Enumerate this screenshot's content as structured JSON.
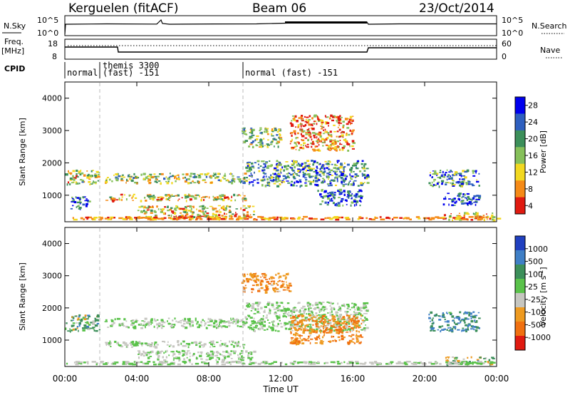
{
  "header": {
    "station": "Kerguelen (fitACF)",
    "beam": "Beam 06",
    "date": "23/Oct/2014"
  },
  "panels": {
    "noise": {
      "left_label": "N.Sky",
      "right_label": "N.Search",
      "left_ticks": [
        "10^5",
        "10^0"
      ],
      "right_ticks": [
        "10^5",
        "10^0"
      ]
    },
    "freq": {
      "left_label_1": "Freq.",
      "left_label_2": "[MHz]",
      "right_label": "Nave",
      "left_ticks": [
        "18",
        "8"
      ],
      "right_ticks": [
        "60",
        "0"
      ]
    },
    "cpid": {
      "label": "CPID",
      "segments": [
        {
          "text": "normal"
        },
        {
          "text": "themis 3300",
          "text2": "(fast) -151"
        },
        {
          "text": "normal (fast) -151"
        }
      ]
    }
  },
  "chart_data": [
    {
      "type": "heatmap",
      "title": "",
      "ylabel": "Slant Range [km]",
      "xlabel": "",
      "colorbar_label": "Power [dB]",
      "colorbar_ticks": [
        "28",
        "24",
        "20",
        "16",
        "12",
        "8",
        "4"
      ],
      "colorbar_values": [
        28,
        24,
        20,
        16,
        12,
        8,
        4
      ],
      "colorscale": [
        "#0000ee",
        "#2e5fbf",
        "#3c8f5a",
        "#86c05a",
        "#f2d820",
        "#f58a17",
        "#e01a10"
      ],
      "y_ticks": [
        "4000",
        "3000",
        "2000",
        "1000"
      ],
      "y_values": [
        4000,
        3000,
        2000,
        1000
      ],
      "ylim": [
        180,
        4500
      ],
      "xlim": [
        0,
        24
      ],
      "x_ticks": [
        "00:00",
        "04:00",
        "08:00",
        "12:00",
        "16:00",
        "20:00",
        "00:00"
      ],
      "x_values": [
        0,
        4,
        8,
        12,
        16,
        20,
        24
      ],
      "bands": [
        {
          "t0": 0.0,
          "t1": 1.9,
          "r0": 1350,
          "r1": 1800,
          "power": 14
        },
        {
          "t0": 0.3,
          "t1": 1.3,
          "r0": 600,
          "r1": 1000,
          "power": 24
        },
        {
          "t0": 2.2,
          "t1": 10.0,
          "r0": 1400,
          "r1": 1700,
          "power": 16
        },
        {
          "t0": 2.2,
          "t1": 10.0,
          "r0": 850,
          "r1": 1050,
          "power": 12
        },
        {
          "t0": 4.0,
          "t1": 10.5,
          "r0": 350,
          "r1": 700,
          "power": 12
        },
        {
          "t0": 9.8,
          "t1": 12.0,
          "r0": 2500,
          "r1": 3100,
          "power": 16
        },
        {
          "t0": 10.0,
          "t1": 16.8,
          "r0": 1300,
          "r1": 2100,
          "power": 20
        },
        {
          "t0": 12.5,
          "t1": 16.0,
          "r0": 2400,
          "r1": 3500,
          "power": 8
        },
        {
          "t0": 14.0,
          "t1": 16.5,
          "r0": 700,
          "r1": 1200,
          "power": 24
        },
        {
          "t0": 20.2,
          "t1": 23.0,
          "r0": 1300,
          "r1": 1800,
          "power": 20
        },
        {
          "t0": 21.0,
          "t1": 23.0,
          "r0": 700,
          "r1": 1100,
          "power": 26
        },
        {
          "t0": 21.0,
          "t1": 23.8,
          "r0": 250,
          "r1": 500,
          "power": 12
        }
      ]
    },
    {
      "type": "heatmap",
      "title": "",
      "ylabel": "Slant Range [km]",
      "xlabel": "Time UT",
      "colorbar_label": "Velocity [m s",
      "colorbar_label_sup": "-1",
      "colorbar_label_end": "]",
      "colorbar_ticks": [
        "1000",
        "500",
        "100",
        "25",
        "-25",
        "-100",
        "-500",
        "-1000"
      ],
      "colorbar_values": [
        1000,
        500,
        100,
        25,
        -25,
        -100,
        -500,
        -1000
      ],
      "colorscale": [
        "#2040c0",
        "#3f7fc6",
        "#3c8f5a",
        "#5ac24a",
        "#c6c6c0",
        "#ee9a20",
        "#f07010",
        "#e01a10"
      ],
      "y_ticks": [
        "4000",
        "3000",
        "2000",
        "1000"
      ],
      "y_values": [
        4000,
        3000,
        2000,
        1000
      ],
      "ylim": [
        180,
        4500
      ],
      "xlim": [
        0,
        24
      ],
      "x_ticks": [
        "00:00",
        "04:00",
        "08:00",
        "12:00",
        "16:00",
        "20:00",
        "00:00"
      ],
      "x_values": [
        0,
        4,
        8,
        12,
        16,
        20,
        24
      ],
      "bands": [
        {
          "t0": 0.0,
          "t1": 1.9,
          "r0": 1300,
          "r1": 1800,
          "velocity": 100
        },
        {
          "t0": 2.2,
          "t1": 10.0,
          "r0": 1400,
          "r1": 1700,
          "velocity": 0
        },
        {
          "t0": 2.2,
          "t1": 10.0,
          "r0": 800,
          "r1": 1000,
          "velocity": 0
        },
        {
          "t0": 4.0,
          "t1": 10.5,
          "r0": 400,
          "r1": 700,
          "velocity": 0
        },
        {
          "t0": 9.8,
          "t1": 12.5,
          "r0": 2500,
          "r1": 3100,
          "velocity": -300
        },
        {
          "t0": 10.0,
          "t1": 16.8,
          "r0": 1300,
          "r1": 2200,
          "velocity": 0
        },
        {
          "t0": 12.5,
          "t1": 16.5,
          "r0": 900,
          "r1": 1800,
          "velocity": -300
        },
        {
          "t0": 20.2,
          "t1": 23.0,
          "r0": 1300,
          "r1": 1900,
          "velocity": 300
        },
        {
          "t0": 21.0,
          "t1": 23.8,
          "r0": 250,
          "r1": 500,
          "velocity": 80
        }
      ]
    }
  ],
  "colors": {
    "frame": "#000000",
    "dashed": "#bbbbbb"
  }
}
